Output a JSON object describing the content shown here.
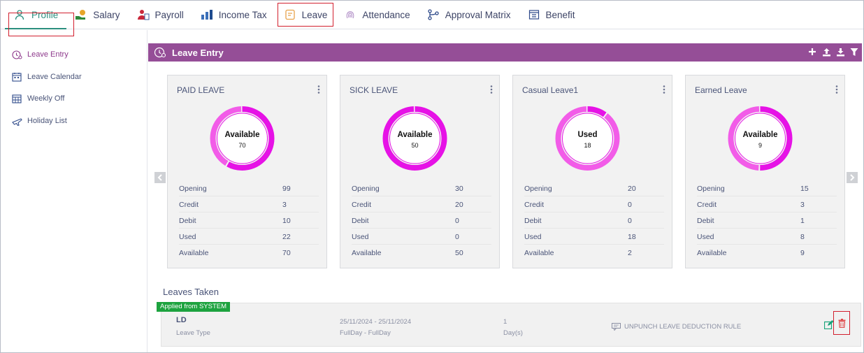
{
  "nav": {
    "tabs": [
      {
        "label": "Profile",
        "icon": "person-icon"
      },
      {
        "label": "Salary",
        "icon": "salary-icon"
      },
      {
        "label": "Payroll",
        "icon": "payroll-icon"
      },
      {
        "label": "Income Tax",
        "icon": "income-tax-icon"
      },
      {
        "label": "Leave",
        "icon": "leave-icon"
      },
      {
        "label": "Attendance",
        "icon": "fingerprint-icon"
      },
      {
        "label": "Approval Matrix",
        "icon": "flow-icon"
      },
      {
        "label": "Benefit",
        "icon": "benefit-icon"
      }
    ],
    "active_tab": "Profile",
    "highlighted_tab": "Leave"
  },
  "sidebar": {
    "items": [
      {
        "label": "Leave Entry",
        "icon": "leave-entry-icon"
      },
      {
        "label": "Leave Calendar",
        "icon": "calendar-icon"
      },
      {
        "label": "Weekly Off",
        "icon": "calendar-grid-icon"
      },
      {
        "label": "Holiday List",
        "icon": "plane-icon"
      }
    ]
  },
  "panel": {
    "title": "Leave Entry",
    "actions": [
      "plus-icon",
      "upload-icon",
      "download-icon",
      "filter-icon"
    ]
  },
  "colors": {
    "accent_teal": "#2c8f7f",
    "bar_purple": "#954e97",
    "donut_dark": "#e612e6",
    "donut_light": "#f25ce8",
    "badge_green": "#1da33f",
    "alert_red": "#d21f2e"
  },
  "cards": [
    {
      "title": "PAID LEAVE",
      "center_label": "Available",
      "center_value": "70",
      "ring_fraction": 0.58,
      "rows": [
        {
          "k": "Opening",
          "v": "99"
        },
        {
          "k": "Credit",
          "v": "3"
        },
        {
          "k": "Debit",
          "v": "10"
        },
        {
          "k": "Used",
          "v": "22"
        },
        {
          "k": "Available",
          "v": "70"
        }
      ]
    },
    {
      "title": "SICK LEAVE",
      "center_label": "Available",
      "center_value": "50",
      "ring_fraction": 1.0,
      "rows": [
        {
          "k": "Opening",
          "v": "30"
        },
        {
          "k": "Credit",
          "v": "20"
        },
        {
          "k": "Debit",
          "v": "0"
        },
        {
          "k": "Used",
          "v": "0"
        },
        {
          "k": "Available",
          "v": "50"
        }
      ]
    },
    {
      "title": "Casual Leave1",
      "center_label": "Used",
      "center_value": "18",
      "ring_fraction": 0.1,
      "rows": [
        {
          "k": "Opening",
          "v": "20"
        },
        {
          "k": "Credit",
          "v": "0"
        },
        {
          "k": "Debit",
          "v": "0"
        },
        {
          "k": "Used",
          "v": "18"
        },
        {
          "k": "Available",
          "v": "2"
        }
      ]
    },
    {
      "title": "Earned Leave",
      "center_label": "Available",
      "center_value": "9",
      "ring_fraction": 0.5,
      "rows": [
        {
          "k": "Opening",
          "v": "15"
        },
        {
          "k": "Credit",
          "v": "3"
        },
        {
          "k": "Debit",
          "v": "1"
        },
        {
          "k": "Used",
          "v": "8"
        },
        {
          "k": "Available",
          "v": "9"
        }
      ]
    }
  ],
  "leaves_taken": {
    "title": "Leaves Taken",
    "badge": "Applied from SYSTEM",
    "entry": {
      "code": "LD",
      "code_caption": "Leave Type",
      "dates": "25/11/2024 - 25/11/2024",
      "dates_caption": "FullDay - FullDay",
      "days": "1",
      "days_caption": "Day(s)",
      "rule": "UNPUNCH LEAVE DEDUCTION RULE"
    }
  }
}
